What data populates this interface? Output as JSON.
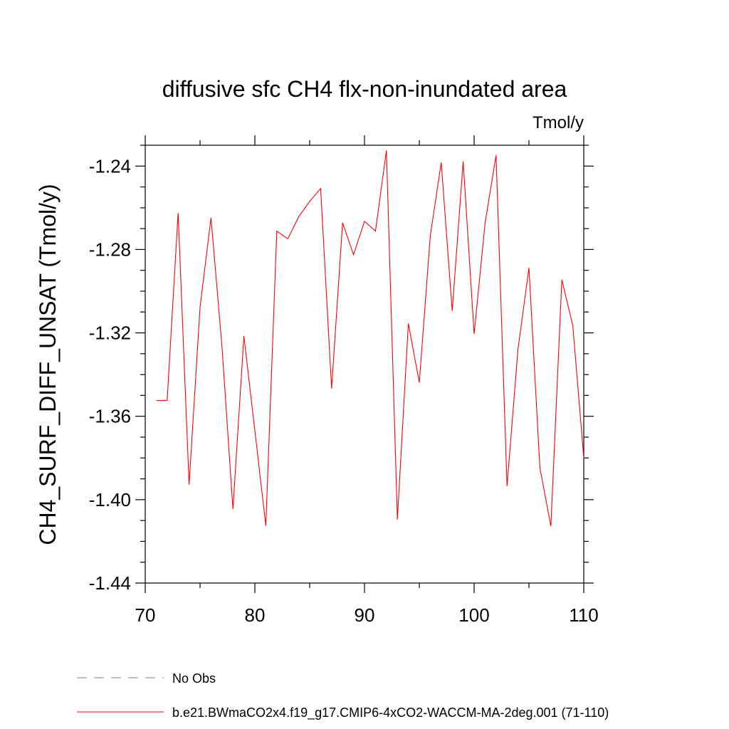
{
  "chart_data": {
    "type": "line",
    "title": "diffusive sfc CH4 flx-non-inundated area",
    "units": "Tmol/y",
    "xlabel": "",
    "ylabel": "CH4_SURF_DIFF_UNSAT  (Tmol/y)",
    "xlim": [
      70,
      110
    ],
    "ylim": [
      -1.44,
      -1.23
    ],
    "x_ticks": [
      70,
      80,
      90,
      100,
      110
    ],
    "x_tick_labels": [
      "70",
      "80",
      "90",
      "100",
      "110"
    ],
    "y_ticks": [
      -1.44,
      -1.4,
      -1.36,
      -1.32,
      -1.28,
      -1.24
    ],
    "y_tick_labels": [
      "-1.44",
      "-1.40",
      "-1.36",
      "-1.32",
      "-1.28",
      "-1.24"
    ],
    "grid": false,
    "legend_position": "bottom",
    "series": [
      {
        "name": "No Obs",
        "color": "#7f7fbf",
        "dash": "dashed",
        "x": [],
        "values": []
      },
      {
        "name": "b.e21.BWmaCO2x4.f19_g17.CMIP6-4xCO2-WACCM-MA-2deg.001 (71-110)",
        "color": "#ff0000",
        "dash": "solid",
        "x": [
          71,
          72,
          73,
          74,
          75,
          76,
          77,
          78,
          79,
          80,
          81,
          82,
          83,
          84,
          85,
          86,
          87,
          88,
          89,
          90,
          91,
          92,
          93,
          94,
          95,
          96,
          97,
          98,
          99,
          100,
          101,
          102,
          103,
          104,
          105,
          106,
          107,
          108,
          109,
          110
        ],
        "values": [
          -1.3525,
          -1.3523,
          -1.2625,
          -1.3928,
          -1.3077,
          -1.2648,
          -1.3265,
          -1.4045,
          -1.3216,
          -1.3669,
          -1.4125,
          -1.2712,
          -1.2749,
          -1.2643,
          -1.2569,
          -1.2508,
          -1.3467,
          -1.2672,
          -1.2825,
          -1.2665,
          -1.2712,
          -1.2325,
          -1.4095,
          -1.3155,
          -1.3438,
          -1.2735,
          -1.2383,
          -1.3095,
          -1.2378,
          -1.3205,
          -1.2673,
          -1.2348,
          -1.3935,
          -1.3278,
          -1.2888,
          -1.3848,
          -1.4127,
          -1.2945,
          -1.3165,
          -1.38
        ]
      }
    ]
  }
}
